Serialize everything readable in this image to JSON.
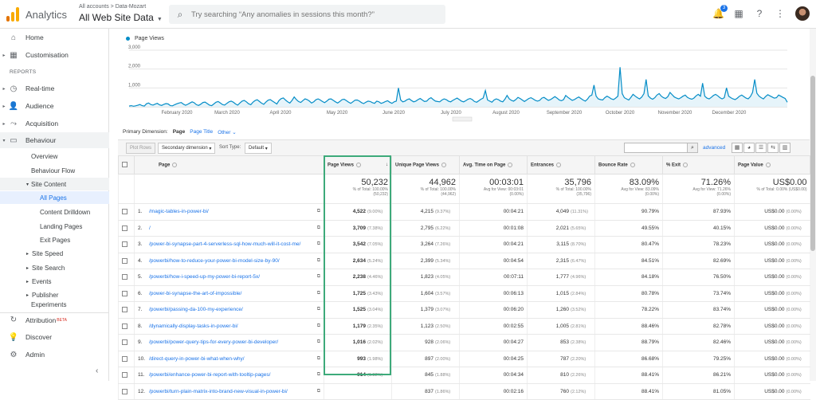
{
  "header": {
    "app_name": "Analytics",
    "account_crumb": "All accounts > Data-Mozart",
    "account_name": "All Web Site Data",
    "search_placeholder": "Try searching “Any anomalies in sessions this month?”",
    "notification_count": "3"
  },
  "sidebar": {
    "home": "Home",
    "customisation": "Customisation",
    "reports_label": "REPORTS",
    "realtime": "Real-time",
    "audience": "Audience",
    "acquisition": "Acquisition",
    "behaviour": "Behaviour",
    "overview": "Overview",
    "behaviour_flow": "Behaviour Flow",
    "site_content": "Site Content",
    "all_pages": "All Pages",
    "content_drilldown": "Content Drilldown",
    "landing_pages": "Landing Pages",
    "exit_pages": "Exit Pages",
    "site_speed": "Site Speed",
    "site_search": "Site Search",
    "events": "Events",
    "publisher": "Publisher",
    "experiments": "Experiments",
    "attribution": "Attribution",
    "beta": "BETA",
    "discover": "Discover",
    "admin": "Admin"
  },
  "chart_data": {
    "type": "line",
    "legend": "Page Views",
    "y_ticks": [
      "3,000",
      "2,000",
      "1,000"
    ],
    "ylim": [
      0,
      3000
    ],
    "x_labels": [
      "February 2020",
      "March 2020",
      "April 2020",
      "May 2020",
      "June 2020",
      "July 2020",
      "August 2020",
      "September 2020",
      "October 2020",
      "November 2020",
      "December 2020"
    ],
    "color": "#058dc7",
    "values": [
      40,
      60,
      30,
      50,
      80,
      120,
      60,
      40,
      160,
      200,
      120,
      90,
      140,
      180,
      100,
      70,
      130,
      170,
      150,
      60,
      50,
      110,
      160,
      200,
      230,
      140,
      80,
      130,
      200,
      260,
      210,
      110,
      70,
      140,
      230,
      250,
      170,
      90,
      60,
      150,
      240,
      280,
      200,
      120,
      90,
      180,
      260,
      300,
      240,
      150,
      90,
      200,
      300,
      340,
      260,
      160,
      110,
      240,
      330,
      370,
      280,
      190,
      130,
      250,
      350,
      380,
      300,
      230,
      150,
      330,
      430,
      470,
      360,
      260,
      200,
      340,
      520,
      380,
      280,
      230,
      330,
      420,
      380,
      300,
      200,
      260,
      370,
      420,
      360,
      280,
      220,
      300,
      400,
      420,
      340,
      260,
      200,
      280,
      380,
      400,
      330,
      250,
      180,
      260,
      350,
      360,
      300,
      220,
      170,
      240,
      300,
      280,
      220,
      180,
      300,
      260,
      180,
      220,
      280,
      320,
      240,
      180,
      260,
      300,
      1000,
      360,
      260,
      300,
      380,
      420,
      330,
      260,
      300,
      380,
      440,
      360,
      280,
      300,
      420,
      480,
      380,
      300,
      280,
      260,
      360,
      420,
      380,
      300,
      260,
      340,
      400,
      460,
      380,
      300,
      260,
      320,
      400,
      440,
      380,
      280,
      240,
      320,
      400,
      460,
      860,
      360,
      300,
      240,
      360,
      420,
      380,
      300,
      260,
      400,
      600,
      420,
      340,
      300,
      380,
      500,
      440,
      360,
      280,
      360,
      440,
      480,
      420,
      340,
      300,
      340,
      460,
      500,
      420,
      340,
      380,
      460,
      540,
      460,
      360,
      320,
      380,
      600,
      500,
      420,
      340,
      380,
      460,
      520,
      440,
      360,
      300,
      400,
      560,
      620,
      1150,
      560,
      420,
      380,
      360,
      480,
      560,
      500,
      420,
      380,
      460,
      560,
      2100,
      700,
      480,
      420,
      360,
      500,
      660,
      560,
      480,
      420,
      520,
      700,
      1450,
      580,
      460,
      400,
      480,
      620,
      700,
      560,
      480,
      440,
      540,
      760,
      640,
      520,
      460,
      420,
      480,
      560,
      620,
      500,
      440,
      400,
      460,
      580,
      660,
      560,
      1250,
      560,
      460,
      420,
      500,
      600,
      660,
      580,
      480,
      420,
      480,
      1000,
      560,
      480,
      420,
      380,
      460,
      560,
      620,
      540,
      460,
      420,
      540,
      760,
      1450,
      720,
      560,
      480,
      420,
      540,
      640,
      580,
      520,
      460,
      480,
      620,
      560,
      500,
      440,
      240
    ]
  },
  "dimension_row": {
    "label": "Primary Dimension:",
    "page": "Page",
    "page_title": "Page Title",
    "other": "Other"
  },
  "toolbar": {
    "plot_rows": "Plot Rows",
    "secondary_dimension": "Secondary dimension",
    "sort_type_label": "Sort Type:",
    "sort_type_value": "Default",
    "advanced": "advanced"
  },
  "table": {
    "columns": [
      "Page",
      "Page Views",
      "Unique Page Views",
      "Avg. Time on Page",
      "Entrances",
      "Bounce Rate",
      "% Exit",
      "Page Value"
    ],
    "totals": {
      "page_views": "50,232",
      "page_views_sub1": "% of Total: 100.00%",
      "page_views_sub2": "(50,232)",
      "unique": "44,962",
      "unique_sub1": "% of Total: 100.00%",
      "unique_sub2": "(44,962)",
      "avg_time": "00:03:01",
      "avg_time_sub1": "Avg for View: 00:03:01",
      "avg_time_sub2": "(0.00%)",
      "entrances": "35,796",
      "entrances_sub1": "% of Total: 100.00%",
      "entrances_sub2": "(35,796)",
      "bounce": "83.09%",
      "bounce_sub1": "Avg for View: 83.09%",
      "bounce_sub2": "(0.00%)",
      "exit": "71.26%",
      "exit_sub1": "Avg for View: 71.26%",
      "exit_sub2": "(0.00%)",
      "value": "US$0.00",
      "value_sub1": "% of Total: 0.00% (US$0.00)"
    },
    "rows": [
      {
        "n": "1.",
        "page": "/magic-tables-in-power-bi/",
        "pv": "4,522",
        "pvp": "(9.00%)",
        "upv": "4,215",
        "upvp": "(9.37%)",
        "time": "00:04:21",
        "ent": "4,049",
        "entp": "(11.31%)",
        "br": "90.79%",
        "ex": "87.93%",
        "val": "US$0.00",
        "valp": "(0.00%)"
      },
      {
        "n": "2.",
        "page": "/",
        "pv": "3,709",
        "pvp": "(7.38%)",
        "upv": "2,795",
        "upvp": "(6.22%)",
        "time": "00:01:08",
        "ent": "2,021",
        "entp": "(5.65%)",
        "br": "49.55%",
        "ex": "40.15%",
        "val": "US$0.00",
        "valp": "(0.00%)"
      },
      {
        "n": "3.",
        "page": "/power-bi-synapse-part-4-serverless-sql-how-much-will-it-cost-me/",
        "pv": "3,542",
        "pvp": "(7.05%)",
        "upv": "3,264",
        "upvp": "(7.26%)",
        "time": "00:04:21",
        "ent": "3,115",
        "entp": "(8.70%)",
        "br": "80.47%",
        "ex": "78.23%",
        "val": "US$0.00",
        "valp": "(0.00%)"
      },
      {
        "n": "4.",
        "page": "/powerbi/how-to-reduce-your-power-bi-model-size-by-90/",
        "pv": "2,634",
        "pvp": "(5.24%)",
        "upv": "2,399",
        "upvp": "(5.34%)",
        "time": "00:04:54",
        "ent": "2,315",
        "entp": "(6.47%)",
        "br": "84.51%",
        "ex": "82.69%",
        "val": "US$0.00",
        "valp": "(0.00%)"
      },
      {
        "n": "5.",
        "page": "/powerbi/how-i-speed-up-my-power-bi-report-5x/",
        "pv": "2,238",
        "pvp": "(4.46%)",
        "upv": "1,823",
        "upvp": "(4.05%)",
        "time": "00:07:11",
        "ent": "1,777",
        "entp": "(4.96%)",
        "br": "84.18%",
        "ex": "76.50%",
        "val": "US$0.00",
        "valp": "(0.00%)"
      },
      {
        "n": "6.",
        "page": "/power-bi-synapse-the-art-of-impossible/",
        "pv": "1,725",
        "pvp": "(3.43%)",
        "upv": "1,604",
        "upvp": "(3.57%)",
        "time": "00:06:13",
        "ent": "1,015",
        "entp": "(2.84%)",
        "br": "80.78%",
        "ex": "73.74%",
        "val": "US$0.00",
        "valp": "(0.00%)"
      },
      {
        "n": "7.",
        "page": "/powerbi/passing-da-100-my-experience/",
        "pv": "1,525",
        "pvp": "(3.04%)",
        "upv": "1,379",
        "upvp": "(3.07%)",
        "time": "00:06:20",
        "ent": "1,260",
        "entp": "(3.52%)",
        "br": "78.22%",
        "ex": "83.74%",
        "val": "US$0.00",
        "valp": "(0.00%)"
      },
      {
        "n": "8.",
        "page": "/dynamically-display-tasks-in-power-bi/",
        "pv": "1,179",
        "pvp": "(2.35%)",
        "upv": "1,123",
        "upvp": "(2.50%)",
        "time": "00:02:55",
        "ent": "1,005",
        "entp": "(2.81%)",
        "br": "88.46%",
        "ex": "82.78%",
        "val": "US$0.00",
        "valp": "(0.00%)"
      },
      {
        "n": "9.",
        "page": "/powerbi/power-query-tips-for-every-power-bi-developer/",
        "pv": "1,016",
        "pvp": "(2.02%)",
        "upv": "928",
        "upvp": "(2.06%)",
        "time": "00:04:27",
        "ent": "853",
        "entp": "(2.38%)",
        "br": "88.79%",
        "ex": "82.46%",
        "val": "US$0.00",
        "valp": "(0.00%)"
      },
      {
        "n": "10.",
        "page": "/direct-query-in-power-bi-what-when-why/",
        "pv": "993",
        "pvp": "(1.98%)",
        "upv": "897",
        "upvp": "(2.00%)",
        "time": "00:04:25",
        "ent": "787",
        "entp": "(2.20%)",
        "br": "86.68%",
        "ex": "79.25%",
        "val": "US$0.00",
        "valp": "(0.00%)"
      },
      {
        "n": "11.",
        "page": "/powerbi/enhance-power-bi-report-with-tooltip-pages/",
        "pv": "914",
        "pvp": "(1.82%)",
        "upv": "845",
        "upvp": "(1.88%)",
        "time": "00:04:34",
        "ent": "810",
        "entp": "(2.26%)",
        "br": "88.41%",
        "ex": "86.21%",
        "val": "US$0.00",
        "valp": "(0.00%)"
      },
      {
        "n": "12.",
        "page": "/powerbi/turn-plain-matrix-into-brand-new-visual-in-power-bi/",
        "pv": "",
        "pvp": "",
        "upv": "837",
        "upvp": "(1.86%)",
        "time": "00:02:16",
        "ent": "760",
        "entp": "(2.12%)",
        "br": "88.41%",
        "ex": "81.05%",
        "val": "US$0.00",
        "valp": "(0.00%)"
      }
    ]
  }
}
